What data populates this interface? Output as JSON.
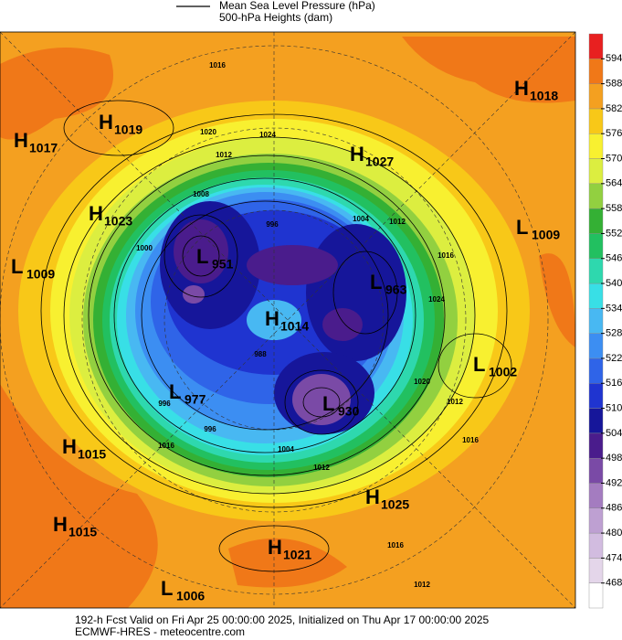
{
  "legend": [
    {
      "label": "Mean Sea Level Pressure (hPa)"
    },
    {
      "label": "500-hPa Heights (dam)"
    }
  ],
  "colorbar": {
    "ticks": [
      468,
      474,
      480,
      486,
      492,
      498,
      504,
      510,
      516,
      522,
      528,
      534,
      540,
      546,
      552,
      558,
      564,
      570,
      576,
      582,
      588,
      594
    ],
    "colors": [
      "#ffffff",
      "#e4d6ea",
      "#d2bce0",
      "#bea0d2",
      "#a47cc0",
      "#7a4aa6",
      "#4a1c8c",
      "#16169a",
      "#1f34d0",
      "#2f64e8",
      "#3c8ef2",
      "#48b8f2",
      "#38dfe6",
      "#2ed8ae",
      "#22c060",
      "#34b034",
      "#92d040",
      "#dcee40",
      "#f8f030",
      "#f8c818",
      "#f4a020",
      "#f07818",
      "#e82020"
    ]
  },
  "centers": [
    {
      "type": "H",
      "value": 1019
    },
    {
      "type": "H",
      "value": 1017
    },
    {
      "type": "H",
      "value": 1027
    },
    {
      "type": "H",
      "value": 1018
    },
    {
      "type": "H",
      "value": 1023
    },
    {
      "type": "L",
      "value": 1009
    },
    {
      "type": "L",
      "value": 1009
    },
    {
      "type": "L",
      "value": 951
    },
    {
      "type": "L",
      "value": 963
    },
    {
      "type": "H",
      "value": 1014
    },
    {
      "type": "L",
      "value": 1002
    },
    {
      "type": "L",
      "value": 977
    },
    {
      "type": "L",
      "value": 930
    },
    {
      "type": "H",
      "value": 1015
    },
    {
      "type": "H",
      "value": 1025
    },
    {
      "type": "H",
      "value": 1015
    },
    {
      "type": "H",
      "value": 1021
    },
    {
      "type": "L",
      "value": 1006
    }
  ],
  "isobar_labels": [
    1016,
    1020,
    1024,
    1012,
    1008,
    1000,
    996,
    1004,
    1012,
    1016,
    1024,
    1020,
    1012,
    1016,
    1016,
    996,
    1004,
    1012,
    1016,
    1012,
    988,
    996
  ],
  "footer": {
    "line1": "192-h Fcst Valid on Fri Apr 25 00:00:00 2025, Initialized on Thu Apr 17 00:00:00 2025",
    "line2": "ECMWF-HRES  - meteocentre.com"
  }
}
